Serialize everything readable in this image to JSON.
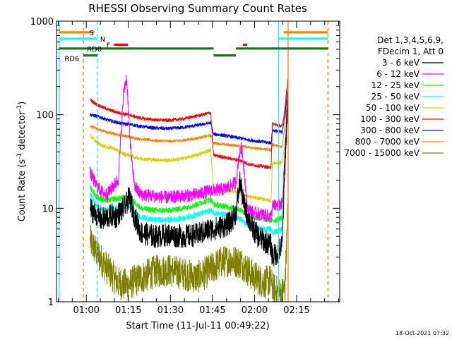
{
  "chart_data": {
    "type": "line",
    "title": "RHESSI Observing Summary Count Rates",
    "xlabel": "Start Time (11-Jul-11 00:49:22)",
    "ylabel_main": "Count Rate (s",
    "ylabel_sup1": "-1",
    "ylabel_mid": " detector",
    "ylabel_sup2": "-1",
    "ylabel_end": ")",
    "x_unit": "minutes after 00:49:22",
    "xlim": [
      0,
      101
    ],
    "ylim": [
      1,
      1000
    ],
    "yscale": "log",
    "x_ticks": [
      {
        "t": 10.63,
        "label": "01:00"
      },
      {
        "t": 25.63,
        "label": "01:15"
      },
      {
        "t": 40.63,
        "label": "01:30"
      },
      {
        "t": 55.63,
        "label": "01:45"
      },
      {
        "t": 70.63,
        "label": "02:00"
      },
      {
        "t": 85.63,
        "label": "02:15"
      }
    ],
    "y_ticks": [
      {
        "v": 1,
        "label": "1"
      },
      {
        "v": 10,
        "label": "10"
      },
      {
        "v": 100,
        "label": "100"
      },
      {
        "v": 1000,
        "label": "1000"
      }
    ],
    "legend": {
      "placement": "right",
      "header": [
        "Det 1,3,4,5,6,9,",
        "FDecim 1, Att 0"
      ],
      "entries": [
        {
          "label": "3 - 6 keV",
          "color": "#000000"
        },
        {
          "label": "6 - 12 keV",
          "color": "#ff00ff"
        },
        {
          "label": "12 - 25 keV",
          "color": "#00ff00"
        },
        {
          "label": "25 - 50 keV",
          "color": "#00ffff"
        },
        {
          "label": "50 - 100 keV",
          "color": "#d4d400"
        },
        {
          "label": "100 - 300 keV",
          "color": "#ff0000"
        },
        {
          "label": "300 - 800 keV",
          "color": "#0000ff"
        },
        {
          "label": "800 - 7000 keV",
          "color": "#ff8000"
        },
        {
          "label": "7000 - 15000 keV",
          "color": "#808000"
        }
      ]
    },
    "series": [
      {
        "name": "3 - 6 keV",
        "color": "#000000",
        "noise": 0.25,
        "x": [
          12,
          14,
          16,
          18,
          20,
          21,
          22.5,
          24,
          26,
          28,
          30,
          35,
          40,
          45,
          50,
          55,
          56,
          60,
          62,
          64,
          65.5,
          66.5,
          68,
          70,
          72,
          74,
          76.5,
          77,
          78,
          79,
          80.5,
          81.5,
          82.5
        ],
        "y": [
          10,
          8.5,
          7.5,
          8,
          8.5,
          8,
          9,
          10,
          13,
          8,
          5.5,
          5,
          5.2,
          5,
          5.2,
          6,
          6,
          6.5,
          7,
          9,
          20,
          12,
          8.5,
          6,
          5,
          4.5,
          4,
          3,
          3.2,
          3.4,
          4,
          30,
          150
        ]
      },
      {
        "name": "6 - 12 keV",
        "color": "#ff00ff",
        "noise": 0.14,
        "x": [
          12,
          14,
          16,
          18,
          20,
          22,
          24,
          25,
          26,
          27,
          28,
          30,
          35,
          40,
          45,
          50,
          55,
          56,
          60,
          64,
          65,
          66,
          67,
          68,
          70,
          74,
          76.5,
          77,
          80.5,
          81.5,
          82.5
        ],
        "y": [
          24,
          18,
          15,
          14,
          17,
          20,
          180,
          250,
          70,
          28,
          17,
          14,
          13.5,
          13,
          13.5,
          14,
          15.5,
          15.5,
          16,
          19,
          35,
          45,
          25,
          10,
          9,
          8.5,
          8,
          10.5,
          11,
          40,
          180
        ]
      },
      {
        "name": "12 - 25 keV",
        "color": "#00ff00",
        "noise": 0.06,
        "x": [
          12,
          14,
          16,
          18,
          20,
          24,
          25,
          26,
          28,
          30,
          35,
          40,
          45,
          50,
          55,
          56,
          60,
          64,
          66,
          68,
          70,
          74,
          76.5,
          77,
          80.5,
          81.5,
          82.5
        ],
        "y": [
          17,
          13.5,
          12.5,
          12,
          12.5,
          13,
          13,
          13,
          11.5,
          10,
          9.5,
          9.5,
          10,
          11,
          12.5,
          11,
          10.5,
          10,
          9.5,
          8.5,
          8,
          7.7,
          7.5,
          7.3,
          8,
          30,
          160
        ]
      },
      {
        "name": "25 - 50 keV",
        "color": "#00ffff",
        "noise": 0.06,
        "x": [
          12,
          14,
          16,
          18,
          20,
          24,
          25,
          26,
          28,
          30,
          35,
          40,
          45,
          50,
          55,
          56,
          60,
          64,
          66,
          68,
          70,
          74,
          76.5,
          77,
          80.5,
          81.5,
          82.5
        ],
        "y": [
          14,
          11,
          10,
          9.5,
          10,
          10.5,
          10.5,
          10.5,
          9,
          8,
          7.5,
          7.5,
          7.8,
          8.5,
          9.5,
          9,
          8.5,
          8,
          7.5,
          6.5,
          6.2,
          6,
          6,
          5.5,
          6,
          25,
          140
        ]
      },
      {
        "name": "50 - 100 keV",
        "color": "#d4d400",
        "noise": 0.04,
        "x": [
          12,
          14,
          16,
          18,
          20,
          22,
          24,
          26,
          28,
          30,
          35,
          40,
          45,
          50,
          55,
          56,
          60,
          64,
          66,
          68,
          70,
          74,
          76.5,
          77,
          80.5,
          81.5,
          82.5
        ],
        "y": [
          60,
          52,
          47,
          45,
          44,
          41,
          38,
          37,
          35,
          34,
          33,
          32.5,
          34,
          37,
          42,
          16,
          15.5,
          15,
          14.5,
          13.5,
          13,
          12.5,
          12,
          30,
          31,
          50,
          200
        ]
      },
      {
        "name": "100 - 300 keV",
        "color": "#ff0000",
        "noise": 0.035,
        "x": [
          12,
          14,
          16,
          18,
          20,
          22,
          24,
          26,
          28,
          30,
          35,
          40,
          45,
          50,
          55,
          56,
          60,
          64,
          66,
          68,
          70,
          74,
          76.5,
          77,
          80.5,
          81.5,
          82.5
        ],
        "y": [
          145,
          130,
          122,
          115,
          110,
          105,
          102,
          100,
          95,
          92,
          88,
          87,
          90,
          97,
          105,
          37,
          35,
          33,
          32,
          30,
          29,
          28,
          27,
          80,
          75,
          120,
          250
        ]
      },
      {
        "name": "300 - 800 keV",
        "color": "#0000ff",
        "noise": 0.035,
        "x": [
          12,
          14,
          16,
          18,
          20,
          22,
          24,
          26,
          28,
          30,
          35,
          40,
          45,
          50,
          55,
          56,
          60,
          64,
          66,
          68,
          70,
          74,
          76.5,
          77,
          80.5,
          81.5,
          82.5
        ],
        "y": [
          100,
          97,
          93,
          88,
          85,
          82,
          80,
          79,
          77,
          75,
          72,
          71,
          73,
          77,
          82,
          62,
          60,
          57,
          56,
          54,
          53,
          51,
          50,
          68,
          65,
          100,
          200
        ]
      },
      {
        "name": "800 - 7000 keV",
        "color": "#ff8000",
        "noise": 0.03,
        "x": [
          12,
          14,
          16,
          18,
          20,
          22,
          24,
          26,
          28,
          30,
          35,
          40,
          45,
          50,
          55,
          56,
          60,
          64,
          66,
          68,
          70,
          74,
          76.5,
          77,
          80.5,
          81.5,
          82.5
        ],
        "y": [
          75,
          72,
          68,
          65,
          63,
          61,
          60,
          58,
          56,
          55,
          53,
          52,
          53,
          56,
          60,
          50,
          48,
          47,
          46,
          45,
          44,
          43,
          42,
          48,
          45,
          80,
          210
        ]
      },
      {
        "name": "7000 - 15000 keV",
        "color": "#808000",
        "noise": 0.35,
        "x": [
          12,
          14,
          16,
          18,
          19,
          20,
          22,
          25,
          30,
          35,
          40,
          45,
          50,
          55,
          58,
          62,
          66,
          68,
          70,
          74,
          76.5,
          77,
          80,
          81.5,
          82.5
        ],
        "y": [
          4.5,
          3.5,
          2.8,
          2.3,
          2.1,
          1.9,
          1.6,
          1.5,
          1.8,
          2.1,
          2.2,
          2.0,
          1.8,
          2.2,
          2.6,
          2.8,
          2.6,
          2.2,
          1.9,
          1.6,
          1.7,
          1.4,
          1.2,
          1.4,
          10
        ]
      }
    ],
    "vertical_lines": [
      {
        "t": 1.0,
        "color": "#00ffff",
        "style": "solid"
      },
      {
        "t": 9.6,
        "color": "#ff8000",
        "style": "dashed"
      },
      {
        "t": 14.6,
        "color": "#00ffff",
        "style": "dashed"
      },
      {
        "t": 79.2,
        "color": "#00ffff",
        "style": "solid"
      },
      {
        "t": 82.6,
        "color": "#ff8000",
        "style": "solid"
      },
      {
        "t": 96.8,
        "color": "#ff8000",
        "style": "dashed"
      }
    ],
    "status_flags": [
      {
        "label": "S",
        "color": "#ff8000",
        "y": 760,
        "label_at": 12.5,
        "segments": [
          [
            1,
            13.5
          ],
          [
            81,
            96.8
          ]
        ]
      },
      {
        "label": "N",
        "color": "#00ffff",
        "y": 650,
        "label_at": 16.5,
        "segments": [
          [
            1,
            14.6
          ],
          [
            79.2,
            96.8
          ]
        ]
      },
      {
        "label": "F",
        "color": "#ff0000",
        "y": 560,
        "label_at": 18.5,
        "segments": [
          [
            20.5,
            25.5
          ],
          [
            66.5,
            68
          ]
        ]
      },
      {
        "label": "RD0",
        "color": "#008000",
        "y": 510,
        "label_at": 13.5,
        "segments": [
          [
            1,
            56
          ],
          [
            64,
            96.8
          ]
        ]
      },
      {
        "label": "RD6",
        "color": "#008000",
        "y": 430,
        "label_at": 5.5,
        "segments": [
          [
            9.6,
            14.6
          ],
          [
            56,
            64
          ]
        ]
      }
    ],
    "footer_timestamp": "18-Oct-2021 07:32"
  }
}
